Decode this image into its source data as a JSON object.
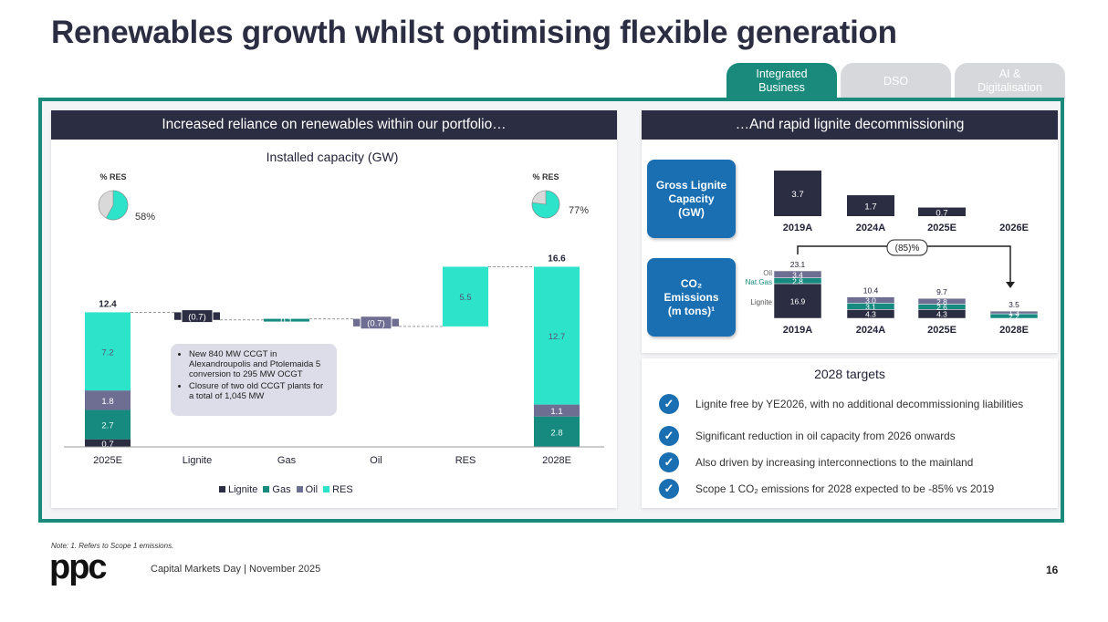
{
  "header": {
    "title": "Renewables growth whilst optimising flexible generation",
    "tabs": [
      {
        "label": "Integrated\nBusiness",
        "active": true,
        "color": "#1a8a7d"
      },
      {
        "label": "DSO",
        "active": false,
        "color": "#d6d8dc"
      },
      {
        "label": "AI &\nDigitalisation",
        "active": false,
        "color": "#d6d8dc"
      }
    ]
  },
  "left_panel": {
    "heading": "Increased reliance on renewables within our portfolio…",
    "chart_title": "Installed capacity (GW)",
    "res_label_left": "% RES",
    "res_pct_left": "58%",
    "res_label_right": "% RES",
    "res_pct_right": "77%",
    "callout": [
      "New 840 MW CCGT in Alexandroupolis and Ptolemaida 5 conversion to 295 MW OCGT",
      "Closure of two old CCGT plants for a total of 1,045 MW"
    ],
    "legend": [
      "Lignite",
      "Gas",
      "Oil",
      "RES"
    ]
  },
  "right_panel": {
    "heading": "…And rapid lignite decommissioning",
    "lignite_box": "Gross Lignite\nCapacity\n(GW)",
    "co2_box": "CO₂\nEmissions\n(m tons)¹",
    "reduction_label": "(85)%",
    "row_labels": {
      "oil": "Oil",
      "gas": "Nat.Gas",
      "lignite": "Lignite"
    }
  },
  "targets": {
    "title": "2028 targets",
    "items": [
      "Lignite free by YE2026, with no additional decommissioning liabilities",
      "Significant reduction in oil capacity from 2026 onwards",
      "Also driven by increasing interconnections to the mainland",
      "Scope 1 CO₂ emissions for 2028 expected to be -85% vs 2019"
    ]
  },
  "footer": {
    "note": "Note: 1. Refers to Scope 1 emissions.",
    "event": "Capital Markets Day | November 2025",
    "page": "16",
    "logo": "ppc"
  },
  "colors": {
    "lignite": "#2b2d42",
    "gas": "#178a80",
    "oil": "#6e6d92",
    "res": "#2de3c9",
    "blue": "#1a6fb3",
    "teal": "#1a8a7d"
  },
  "chart_data": [
    {
      "type": "bar",
      "subtype": "waterfall",
      "title": "Installed capacity (GW)",
      "categories": [
        "2025E",
        "Lignite",
        "Gas",
        "Oil",
        "RES",
        "2028E"
      ],
      "series": [
        {
          "name": "Lignite",
          "values": [
            0.7,
            null,
            null,
            null,
            null,
            null
          ]
        },
        {
          "name": "Gas",
          "values": [
            2.7,
            null,
            null,
            null,
            null,
            2.8
          ]
        },
        {
          "name": "Oil",
          "values": [
            1.8,
            null,
            null,
            null,
            null,
            1.1
          ]
        },
        {
          "name": "RES",
          "values": [
            7.2,
            null,
            null,
            null,
            null,
            12.7
          ]
        }
      ],
      "deltas": [
        {
          "category": "Lignite",
          "value": -0.7,
          "label": "(0.7)",
          "series": "Lignite"
        },
        {
          "category": "Gas",
          "value": 0.1,
          "label": "0.1",
          "series": "Gas"
        },
        {
          "category": "Oil",
          "value": -0.7,
          "label": "(0.7)",
          "series": "Oil"
        },
        {
          "category": "RES",
          "value": 5.5,
          "label": "5.5",
          "series": "RES"
        }
      ],
      "totals": [
        {
          "category": "2025E",
          "value": 12.4,
          "label": "12.4"
        },
        {
          "category": "2028E",
          "value": 16.6,
          "label": "16.6"
        }
      ],
      "res_share": [
        {
          "category": "2025E",
          "value": 58
        },
        {
          "category": "2028E",
          "value": 77
        }
      ],
      "legend": "bottom"
    },
    {
      "type": "bar",
      "title": "Gross Lignite Capacity (GW)",
      "categories": [
        "2019A",
        "2024A",
        "2025E",
        "2026E"
      ],
      "values": [
        3.7,
        1.7,
        0.7,
        0
      ],
      "labels": [
        "3.7",
        "1.7",
        "0.7",
        ""
      ]
    },
    {
      "type": "bar",
      "subtype": "stacked",
      "title": "CO₂ Emissions (m tons)",
      "categories": [
        "2019A",
        "2024A",
        "2025E",
        "2028E"
      ],
      "series": [
        {
          "name": "Lignite",
          "values": [
            16.9,
            4.3,
            4.3,
            0
          ]
        },
        {
          "name": "Nat.Gas",
          "values": [
            2.8,
            3.1,
            2.6,
            2.2
          ]
        },
        {
          "name": "Oil",
          "values": [
            3.4,
            3.0,
            2.8,
            1.3
          ]
        }
      ],
      "totals": [
        "23.1",
        "10.4",
        "9.7",
        "3.5"
      ],
      "change_label": "(85)%"
    }
  ]
}
